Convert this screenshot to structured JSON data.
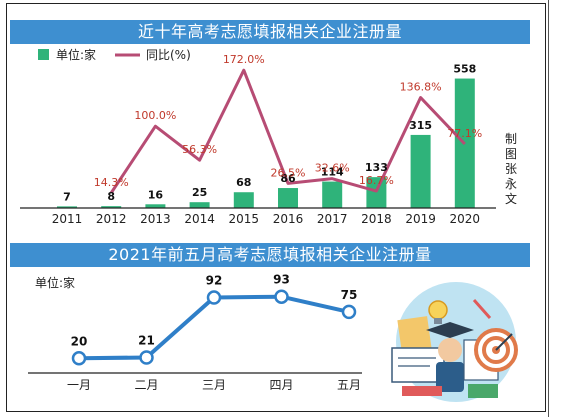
{
  "chart_data": [
    {
      "type": "bar",
      "title": "近十年高考志愿填报相关企业注册量",
      "categories": [
        "2011",
        "2012",
        "2013",
        "2014",
        "2015",
        "2016",
        "2017",
        "2018",
        "2019",
        "2020"
      ],
      "series": [
        {
          "name": "单位:家",
          "type": "bar",
          "color": "#2fb37a",
          "values": [
            7,
            8,
            16,
            25,
            68,
            86,
            114,
            133,
            315,
            558
          ],
          "labels": [
            "7",
            "8",
            "16",
            "25",
            "68",
            "86",
            "114",
            "133",
            "315",
            "558"
          ]
        },
        {
          "name": "同比(%)",
          "type": "line",
          "color": "#b74c74",
          "values": [
            null,
            14.3,
            100.0,
            56.3,
            172.0,
            26.5,
            32.6,
            16.7,
            136.8,
            77.1
          ],
          "labels": [
            "",
            "14.3%",
            "100.0%",
            "56.3%",
            "172.0%",
            "26.5%",
            "32.6%",
            "16.7%",
            "136.8%",
            "77.1%"
          ]
        }
      ],
      "grid": false,
      "legend": "top-left"
    },
    {
      "type": "line",
      "title": "2021年前五月高考志愿填报相关企业注册量",
      "unit_label": "单位:家",
      "categories": [
        "一月",
        "二月",
        "三月",
        "四月",
        "五月"
      ],
      "series": [
        {
          "color": "#2f7fc8",
          "values": [
            20,
            21,
            92,
            93,
            75
          ],
          "labels": [
            "20",
            "21",
            "92",
            "93",
            "75"
          ]
        }
      ],
      "grid": false
    }
  ],
  "credit": "制图张永文",
  "colors": {
    "banner": "#3e8fd0",
    "bar": "#2fb37a",
    "yoy_line": "#b74c74",
    "monthly_line": "#2f7fc8"
  },
  "illustration_icon": "education-illustration-icon"
}
